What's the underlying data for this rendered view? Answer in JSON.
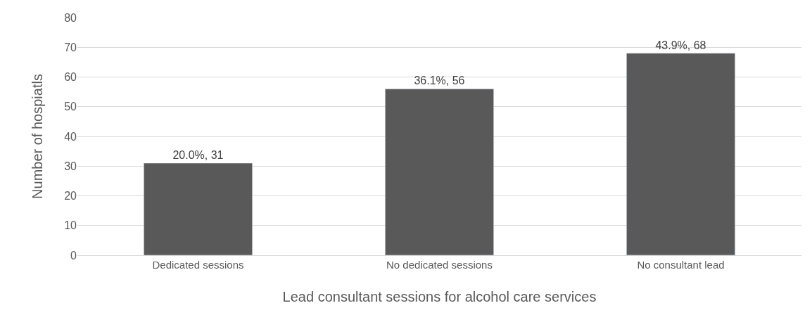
{
  "chart_data": {
    "type": "bar",
    "xlabel": "Lead consultant sessions for alcohol care services",
    "ylabel": "Number of hospiatls",
    "categories": [
      "Dedicated sessions",
      "No dedicated sessions",
      "No consultant lead"
    ],
    "values": [
      31,
      56,
      68
    ],
    "value_labels": [
      "20.0%, 31",
      "36.1%, 56",
      "43.9%, 68"
    ],
    "color": "#595959",
    "ylim": [
      0,
      80
    ],
    "yticks": [
      0,
      10,
      20,
      30,
      40,
      50,
      60,
      70,
      80
    ],
    "grid": "y"
  }
}
